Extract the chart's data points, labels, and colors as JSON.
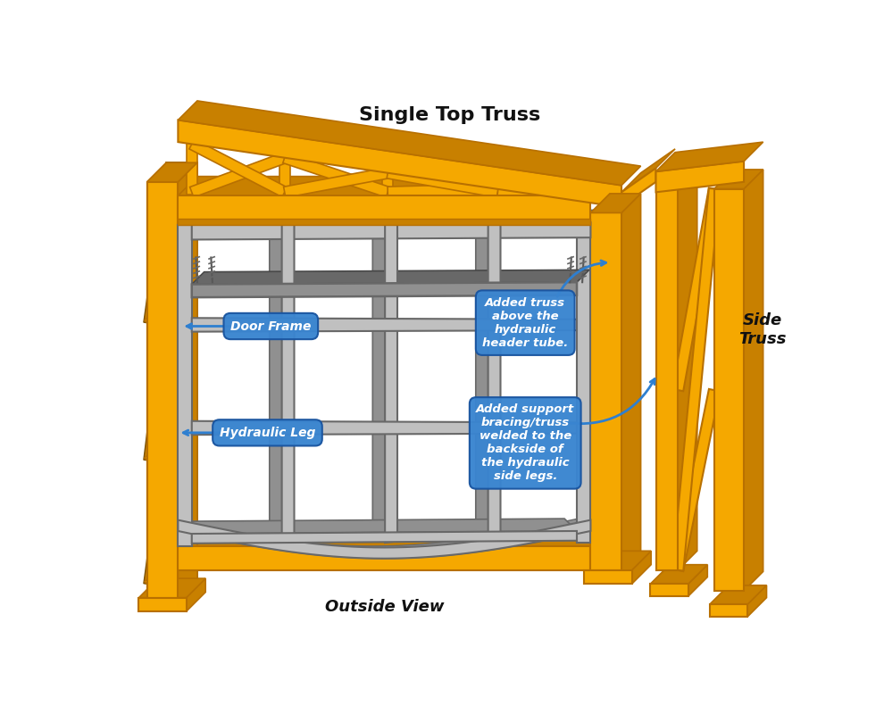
{
  "bg_color": "#ffffff",
  "orange": "#F5A800",
  "orange_dark": "#C88000",
  "orange_shadow": "#7A5000",
  "orange_edge": "#B87000",
  "steel_face": "#C0C0C0",
  "steel_side": "#909090",
  "steel_top": "#B0B0B0",
  "steel_dark": "#686868",
  "steel_shadow": "#484848",
  "blue_label": "#3A85D0",
  "blue_label_dark": "#1A55A0",
  "arrow_color": "#2E7FD0",
  "title_color": "#111111",
  "title_top": "Single Top Truss",
  "title_bottom": "Outside View",
  "label_side_truss": "Side\nTruss",
  "label_door_frame": "Door Frame",
  "label_hydraulic_leg": "Hydraulic Leg",
  "label_added_truss": "Added truss\nabove the\nhydraulic\nheader tube.",
  "label_added_support": "Added support\nbracing/truss\nwelded to the\nbackside of\nthe hydraulic\nside legs."
}
